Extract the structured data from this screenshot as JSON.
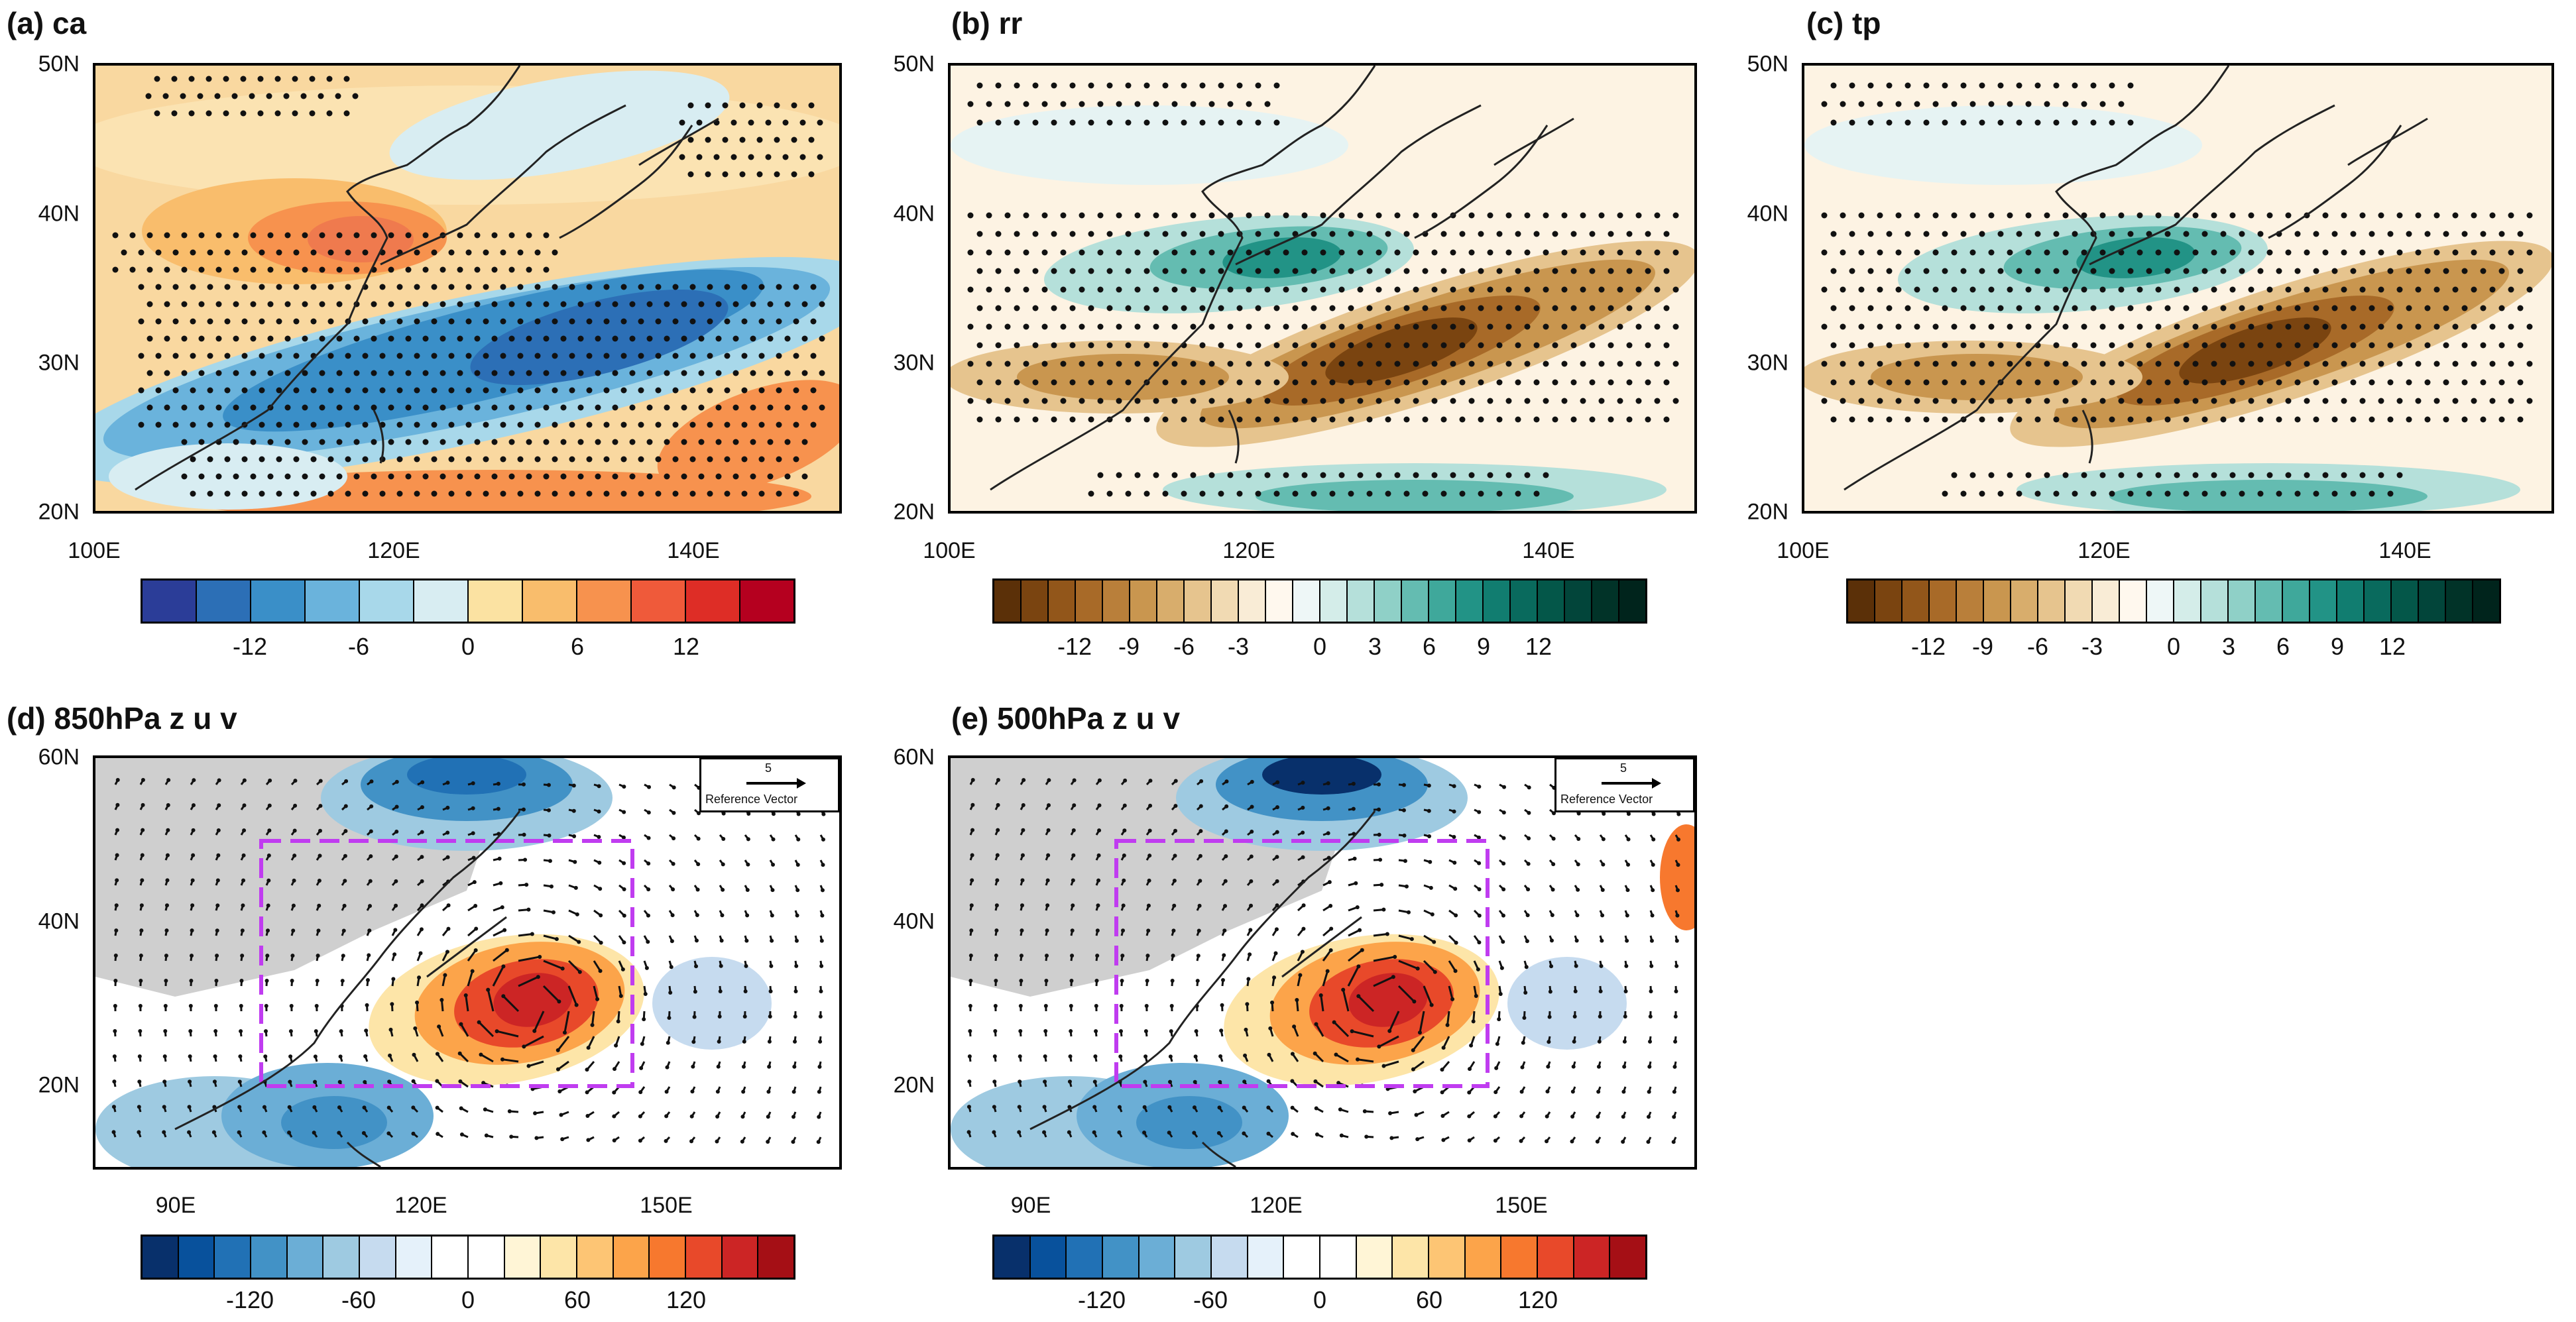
{
  "figure": {
    "panels": [
      {
        "id": "a",
        "title": "(a) ca",
        "lat_labels": [
          "50N",
          "40N",
          "30N",
          "20N"
        ],
        "lon_labels": [
          "100E",
          "120E",
          "140E"
        ],
        "palette": "warm-cool",
        "colorbar_labels": [
          "-12",
          "-6",
          "0",
          "6",
          "12"
        ]
      },
      {
        "id": "b",
        "title": "(b) rr",
        "lat_labels": [
          "50N",
          "40N",
          "30N",
          "20N"
        ],
        "lon_labels": [
          "100E",
          "120E",
          "140E"
        ],
        "palette": "brown-teal",
        "colorbar_labels": [
          "-12",
          "-9",
          "-6",
          "-3",
          "0",
          "3",
          "6",
          "9",
          "12"
        ]
      },
      {
        "id": "c",
        "title": "(c) tp",
        "lat_labels": [
          "50N",
          "40N",
          "30N",
          "20N"
        ],
        "lon_labels": [
          "100E",
          "120E",
          "140E"
        ],
        "palette": "brown-teal",
        "colorbar_labels": [
          "-12",
          "-9",
          "-6",
          "-3",
          "0",
          "3",
          "6",
          "9",
          "12"
        ]
      },
      {
        "id": "d",
        "title": "(d) 850hPa z u v",
        "lat_labels": [
          "60N",
          "40N",
          "20N"
        ],
        "lon_labels": [
          "90E",
          "120E",
          "150E"
        ],
        "palette": "blue-red",
        "colorbar_labels": [
          "-120",
          "-60",
          "0",
          "60",
          "120"
        ],
        "reference_vector": {
          "value": "5",
          "label": "Reference Vector"
        }
      },
      {
        "id": "e",
        "title": "(e) 500hPa z u v",
        "lat_labels": [
          "60N",
          "40N",
          "20N"
        ],
        "lon_labels": [
          "90E",
          "120E",
          "150E"
        ],
        "palette": "blue-red",
        "colorbar_labels": [
          "-120",
          "-60",
          "0",
          "60",
          "120"
        ],
        "reference_vector": {
          "value": "5",
          "label": "Reference Vector"
        }
      }
    ],
    "colors": {
      "warm_cool": [
        "#2b3d98",
        "#2c6fb6",
        "#3a8fc8",
        "#6ab3dc",
        "#a8d8ea",
        "#d8edf2",
        "#fbe2a2",
        "#f9bd6c",
        "#f7924e",
        "#ef5a3a",
        "#de2d26",
        "#b5001f"
      ],
      "brown_teal": [
        "#5b3008",
        "#7a4410",
        "#92561a",
        "#a86a28",
        "#b97f3a",
        "#c9964f",
        "#d8ad6c",
        "#e6c48e",
        "#f1dab3",
        "#f9ecd6",
        "#fff8ee",
        "#eef7f7",
        "#d4ede9",
        "#b5e0da",
        "#8fd0c7",
        "#64bcb1",
        "#3fa89b",
        "#229386",
        "#117d70",
        "#096a5d",
        "#045749",
        "#02453a",
        "#013328",
        "#00241c"
      ],
      "blue_red": [
        "#08306b",
        "#08519c",
        "#2171b5",
        "#4292c6",
        "#6baed6",
        "#9ecae1",
        "#c6dbef",
        "#e5f1fa",
        "#ffffff",
        "#ffffff",
        "#fff5d6",
        "#fde5a8",
        "#fdc574",
        "#fca44a",
        "#f7782e",
        "#e8492a",
        "#cc2525",
        "#a50f15"
      ],
      "box": "#c03cf0",
      "land_gray": "#cfcfcf"
    }
  }
}
